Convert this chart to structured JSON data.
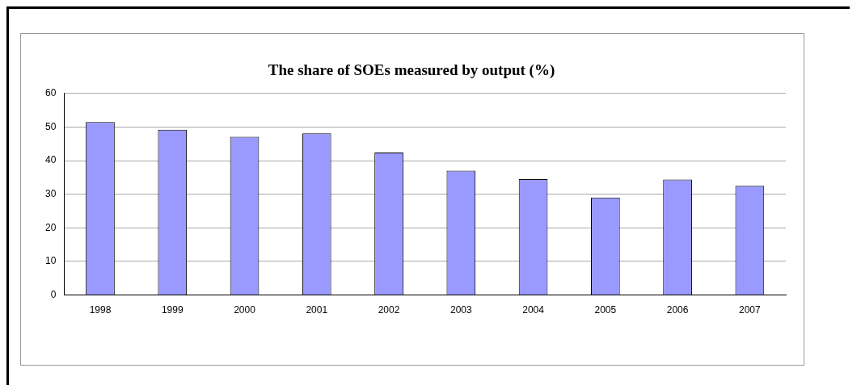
{
  "chart_data": {
    "type": "bar",
    "title": "The share of SOEs measured by output (%)",
    "categories": [
      "1998",
      "1999",
      "2000",
      "2001",
      "2002",
      "2003",
      "2004",
      "2005",
      "2006",
      "2007"
    ],
    "values": [
      51.5,
      49.2,
      47.1,
      48.1,
      42.4,
      37.0,
      34.5,
      29.0,
      34.4,
      32.5
    ],
    "color": "#9999ff",
    "ylim": [
      0,
      60
    ],
    "yticks": [
      0,
      10,
      20,
      30,
      40,
      50,
      60
    ],
    "grid": "y"
  }
}
